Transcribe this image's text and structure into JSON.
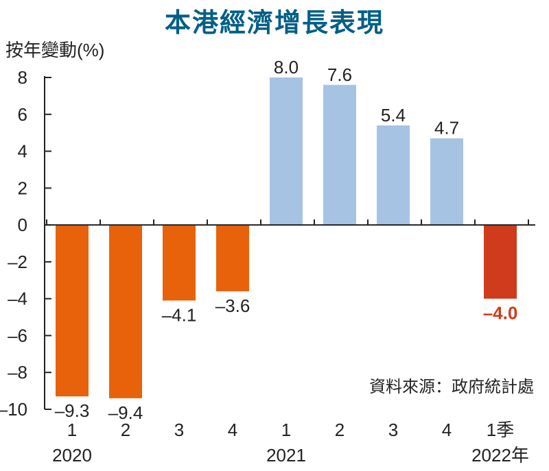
{
  "chart_data": {
    "type": "bar",
    "title": "本港經濟增長表現",
    "ylabel": "按年變動(%)",
    "source": "資料來源：政府統計處",
    "ylim": [
      -10,
      8
    ],
    "yticks": [
      8,
      6,
      4,
      2,
      0,
      -2,
      -4,
      -6,
      -8,
      -10
    ],
    "ytick_labels": [
      "8",
      "6",
      "4",
      "2",
      "0",
      "–2",
      "–4",
      "–6",
      "–8",
      "–10"
    ],
    "categories": [
      "1",
      "2",
      "3",
      "4",
      "1",
      "2",
      "3",
      "4",
      "1季"
    ],
    "year_labels": [
      {
        "label": "2020",
        "under_category": 0
      },
      {
        "label": "2021",
        "under_category": 4
      },
      {
        "label": "2022年",
        "under_category": 8
      }
    ],
    "values": [
      -9.3,
      -9.4,
      -4.1,
      -3.6,
      8.0,
      7.6,
      5.4,
      4.7,
      -4.0
    ],
    "value_labels": [
      "–9.3",
      "–9.4",
      "–4.1",
      "–3.6",
      "8.0",
      "7.6",
      "5.4",
      "4.7",
      "–4.0"
    ],
    "grid": false,
    "colors": {
      "negative": "#e8620c",
      "positive": "#a7c3e4",
      "latest": "#cf3b1c",
      "latest_label": "#cf3b1c",
      "title": "#005f86",
      "text": "#222222"
    }
  }
}
